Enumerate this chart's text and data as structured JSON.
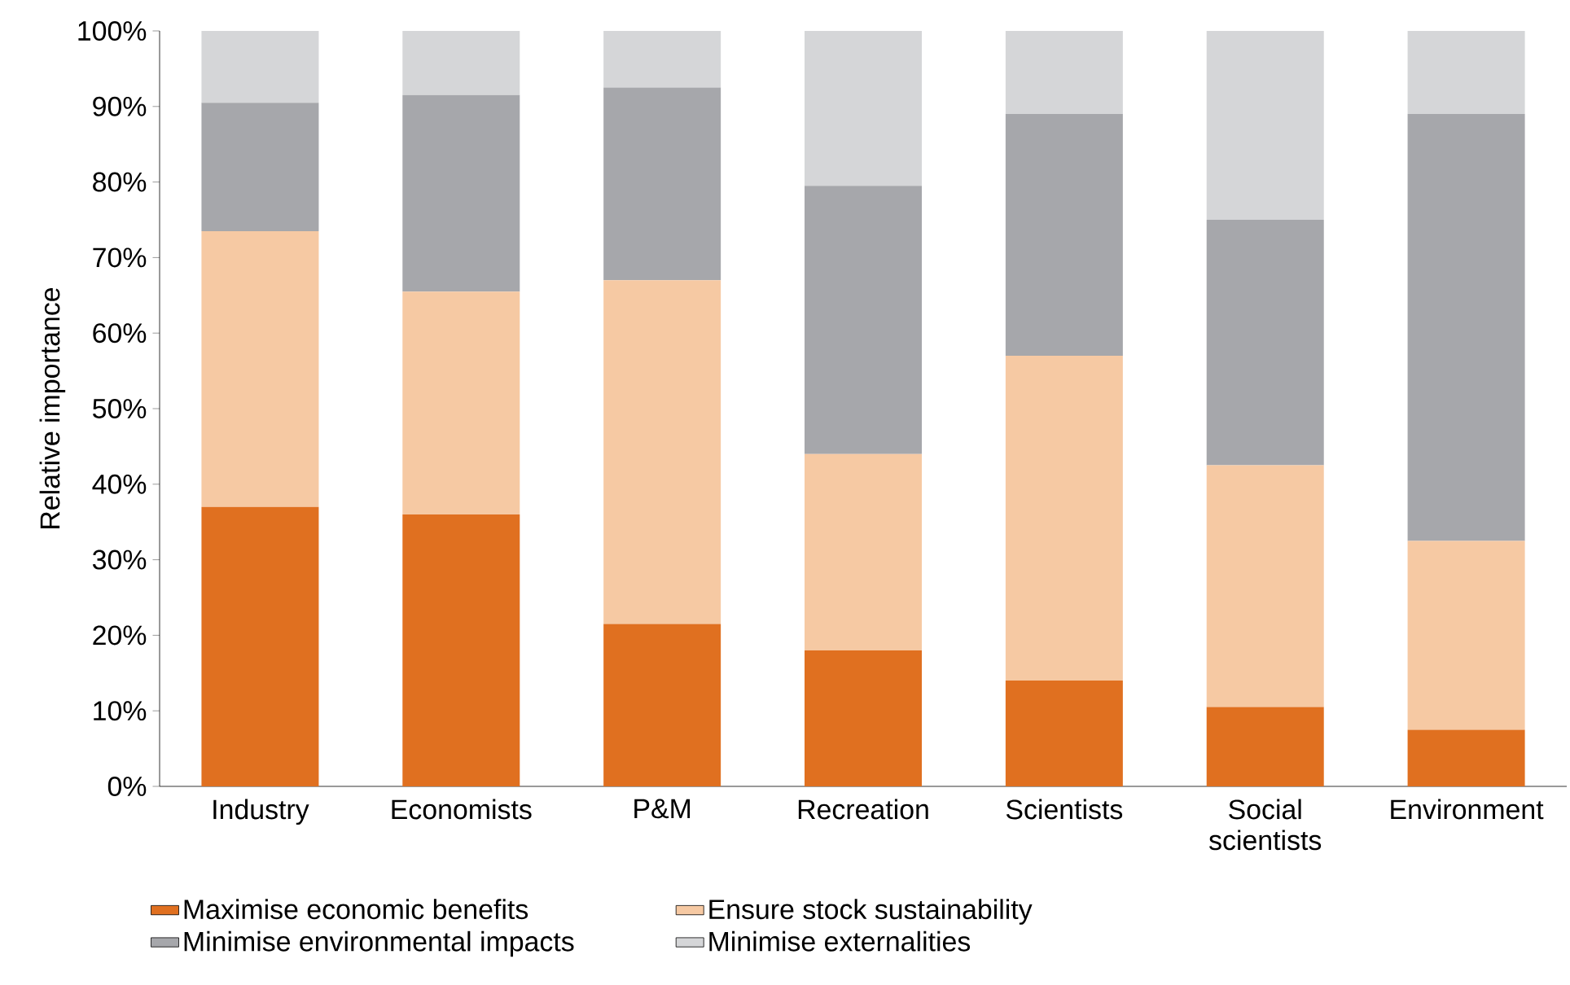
{
  "chart_data": {
    "type": "bar",
    "stacked": true,
    "ylabel": "Relative importance",
    "categories": [
      "Industry",
      "Economists",
      "P&M",
      "Recreation",
      "Scientists",
      "Social scientists",
      "Environment"
    ],
    "series": [
      {
        "name": "Maximise economic benefits",
        "color": "#e07020",
        "values": [
          37,
          36,
          21.5,
          18,
          14,
          10.5,
          7.5
        ]
      },
      {
        "name": "Ensure stock sustainability",
        "color": "#f6c9a3",
        "values": [
          36.5,
          29.5,
          45.5,
          26,
          43,
          32,
          25
        ]
      },
      {
        "name": "Minimise environmental impacts",
        "color": "#a6a7ab",
        "values": [
          17,
          26,
          25.5,
          35.5,
          32,
          32.5,
          56.5
        ]
      },
      {
        "name": "Minimise externalities",
        "color": "#d5d6d8",
        "values": [
          9.5,
          8.5,
          7.5,
          20.5,
          11,
          25,
          11
        ]
      }
    ],
    "ylim": [
      0,
      100
    ],
    "yticks": [
      {
        "value": 0,
        "label": "0%"
      },
      {
        "value": 10,
        "label": "10%"
      },
      {
        "value": 20,
        "label": "20%"
      },
      {
        "value": 30,
        "label": "30%"
      },
      {
        "value": 40,
        "label": "40%"
      },
      {
        "value": 50,
        "label": "50%"
      },
      {
        "value": 60,
        "label": "60%"
      },
      {
        "value": 70,
        "label": "70%"
      },
      {
        "value": 80,
        "label": "80%"
      },
      {
        "value": 90,
        "label": "90%"
      },
      {
        "value": 100,
        "label": "100%"
      }
    ],
    "grid": false,
    "legend": "bottom"
  }
}
